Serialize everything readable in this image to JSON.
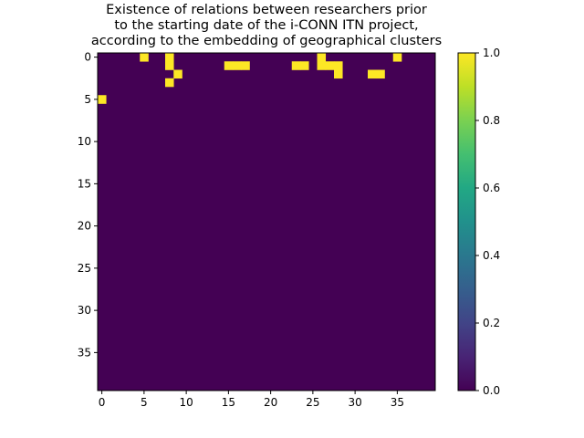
{
  "chart_data": {
    "type": "heatmap",
    "title": "Existence of relations between researchers prior\nto the starting date of the i-CONN ITN project,\naccording to the embedding of geographical clusters",
    "n": 40,
    "rows": [
      "0000010010000000000000000010000000010000",
      "0000000010000001110000011011100000000000",
      "0000000001000000000000000000100011000000",
      "0000000010000000000000000000000000000000",
      "0000000000000000000000000000000000000000",
      "1000000000000000000000000000000000000000",
      "0000000000000000000000000000000000000000",
      "0000000000000000000000000000000000000000",
      "0000000000000000000000000000000000000000",
      "0000000000000000000000000000000000000000",
      "0000000000000000000000000000000000000000",
      "0000000000000000000000000000000000000000",
      "0000000000000000000000000000000000000000",
      "0000000000000000000000000000000000000000",
      "0000000000000000000000000000000000000000",
      "0000000000000000000000000000000000000000",
      "0000000000000000000000000000000000000000",
      "0000000000000000000000000000000000000000",
      "0000000000000000000000000000000000000000",
      "0000000000000000000000000000000000000000",
      "0000000000000000000000000000000000000000",
      "0000000000000000000000000000000000000000",
      "0000000000000000000000000000000000000000",
      "0000000000000000000000000000000000000000",
      "0000000000000000000000000000000000000000",
      "0000000000000000000000000000000000000000",
      "0000000000000000000000000000000000000000",
      "0000000000000000000000000000000000000000",
      "0000000000000000000000000000000000000000",
      "0000000000000000000000000000000000000000",
      "0000000000000000000000000000000000000000",
      "0000000000000000000000000000000000000000",
      "0000000000000000000000000000000000000000",
      "0000000000000000000000000000000000000000",
      "0000000000000000000000000000000000000000",
      "0000000000000000000000000000000000000000",
      "0000000000000000000000000000000000000000",
      "0000000000000000000000000000000000000000",
      "0000000000000000000000000000000000000000",
      "0000000000000000000000000000000000000000"
    ],
    "x_ticks": [
      0,
      5,
      10,
      15,
      20,
      25,
      30,
      35
    ],
    "y_ticks": [
      0,
      5,
      10,
      15,
      20,
      25,
      30,
      35
    ],
    "colorbar_range": [
      0.0,
      1.0
    ],
    "colorbar_ticks": [
      "0.0",
      "0.2",
      "0.4",
      "0.6",
      "0.8",
      "1.0"
    ],
    "colormap": "viridis",
    "color_low": "#440154",
    "color_high": "#fde725"
  }
}
